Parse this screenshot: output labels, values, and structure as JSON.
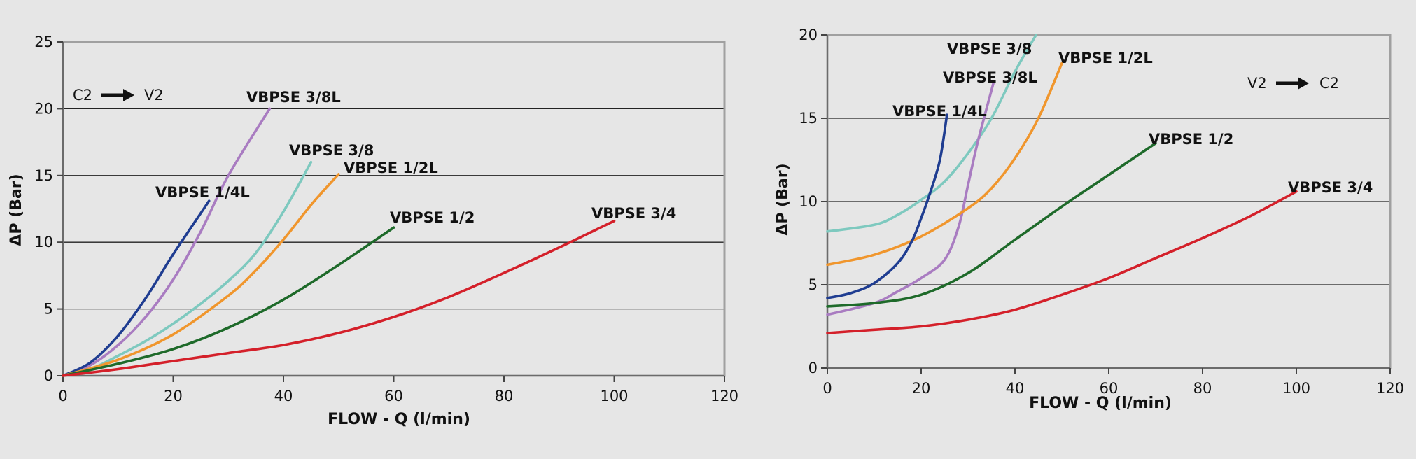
{
  "chart_data": [
    {
      "type": "line",
      "xlabel": "FLOW - Q (l/min)",
      "ylabel": "ΔP (Bar)",
      "xlim": [
        0,
        120
      ],
      "ylim": [
        0,
        25
      ],
      "xticks": [
        0,
        20,
        40,
        60,
        80,
        100,
        120
      ],
      "yticks": [
        0,
        5,
        10,
        15,
        20,
        25
      ],
      "grid": "horizontal",
      "flow_direction": {
        "from": "C2",
        "to": "V2"
      },
      "series": [
        {
          "name": "VBPSE 3/8L",
          "color": "#a97cc1",
          "points": [
            [
              0,
              0
            ],
            [
              5,
              0.8
            ],
            [
              10,
              2.3
            ],
            [
              15,
              4.4
            ],
            [
              20,
              7.2
            ],
            [
              25,
              10.8
            ],
            [
              30,
              15
            ],
            [
              37.5,
              20
            ]
          ]
        },
        {
          "name": "VBPSE 1/4L",
          "color": "#1f3d91",
          "points": [
            [
              0,
              0
            ],
            [
              5,
              1
            ],
            [
              10,
              3
            ],
            [
              15,
              5.8
            ],
            [
              20,
              9.1
            ],
            [
              26.5,
              13.1
            ]
          ]
        },
        {
          "name": "VBPSE 3/8",
          "color": "#7ec9bf",
          "points": [
            [
              0,
              0
            ],
            [
              5,
              0.5
            ],
            [
              10,
              1.5
            ],
            [
              15,
              2.6
            ],
            [
              20,
              3.9
            ],
            [
              25,
              5.4
            ],
            [
              30,
              7.1
            ],
            [
              35,
              9.2
            ],
            [
              40,
              12.3
            ],
            [
              45,
              16
            ]
          ]
        },
        {
          "name": "VBPSE 1/2L",
          "color": "#f0962d",
          "points": [
            [
              0,
              0
            ],
            [
              10,
              1.2
            ],
            [
              20,
              3.1
            ],
            [
              30,
              6
            ],
            [
              35,
              7.9
            ],
            [
              40,
              10.2
            ],
            [
              45,
              12.8
            ],
            [
              50,
              15.1
            ]
          ]
        },
        {
          "name": "VBPSE 1/2",
          "color": "#1e6a2a",
          "points": [
            [
              0,
              0
            ],
            [
              10,
              0.9
            ],
            [
              20,
              2
            ],
            [
              30,
              3.6
            ],
            [
              40,
              5.7
            ],
            [
              50,
              8.3
            ],
            [
              60,
              11.1
            ]
          ]
        },
        {
          "name": "VBPSE 3/4",
          "color": "#d4202a",
          "points": [
            [
              0,
              0
            ],
            [
              10,
              0.5
            ],
            [
              20,
              1.1
            ],
            [
              30,
              1.7
            ],
            [
              40,
              2.3
            ],
            [
              50,
              3.2
            ],
            [
              60,
              4.4
            ],
            [
              70,
              5.9
            ],
            [
              80,
              7.7
            ],
            [
              90,
              9.6
            ],
            [
              100,
              11.6
            ]
          ]
        }
      ]
    },
    {
      "type": "line",
      "xlabel": "FLOW - Q (l/min)",
      "ylabel": "ΔP (Bar)",
      "xlim": [
        0,
        120
      ],
      "ylim": [
        0,
        20
      ],
      "xticks": [
        0,
        20,
        40,
        60,
        80,
        100,
        120
      ],
      "yticks": [
        0,
        5,
        10,
        15,
        20
      ],
      "grid": "horizontal",
      "flow_direction": {
        "from": "V2",
        "to": "C2"
      },
      "series": [
        {
          "name": "VBPSE 3/8",
          "color": "#7ec9bf",
          "points": [
            [
              0,
              8.2
            ],
            [
              10,
              8.6
            ],
            [
              15,
              9.2
            ],
            [
              20,
              10.1
            ],
            [
              25,
              11.2
            ],
            [
              30,
              12.9
            ],
            [
              35,
              15
            ],
            [
              40,
              17.8
            ],
            [
              44.5,
              20
            ]
          ]
        },
        {
          "name": "VBPSE 3/8L",
          "color": "#a97cc1",
          "points": [
            [
              0,
              3.2
            ],
            [
              10,
              3.9
            ],
            [
              15,
              4.6
            ],
            [
              20,
              5.4
            ],
            [
              25,
              6.5
            ],
            [
              28,
              8.5
            ],
            [
              30,
              11
            ],
            [
              32,
              13.5
            ],
            [
              35.5,
              17.2
            ]
          ]
        },
        {
          "name": "VBPSE 1/2L",
          "color": "#f0962d",
          "points": [
            [
              0,
              6.2
            ],
            [
              10,
              6.8
            ],
            [
              20,
              7.9
            ],
            [
              30,
              9.6
            ],
            [
              35,
              10.8
            ],
            [
              40,
              12.6
            ],
            [
              45,
              15
            ],
            [
              50,
              18.3
            ]
          ]
        },
        {
          "name": "VBPSE 1/4L",
          "color": "#1f3d91",
          "points": [
            [
              0,
              4.2
            ],
            [
              5,
              4.5
            ],
            [
              10,
              5.1
            ],
            [
              15,
              6.3
            ],
            [
              18,
              7.6
            ],
            [
              20,
              9
            ],
            [
              22,
              10.6
            ],
            [
              24,
              12.5
            ],
            [
              25.5,
              15.2
            ]
          ]
        },
        {
          "name": "VBPSE 1/2",
          "color": "#1e6a2a",
          "points": [
            [
              0,
              3.7
            ],
            [
              10,
              3.9
            ],
            [
              20,
              4.4
            ],
            [
              30,
              5.7
            ],
            [
              40,
              7.7
            ],
            [
              50,
              9.7
            ],
            [
              60,
              11.6
            ],
            [
              70,
              13.5
            ]
          ]
        },
        {
          "name": "VBPSE 3/4",
          "color": "#d4202a",
          "points": [
            [
              0,
              2.1
            ],
            [
              10,
              2.3
            ],
            [
              20,
              2.5
            ],
            [
              30,
              2.9
            ],
            [
              40,
              3.5
            ],
            [
              50,
              4.4
            ],
            [
              60,
              5.4
            ],
            [
              70,
              6.6
            ],
            [
              80,
              7.8
            ],
            [
              90,
              9.1
            ],
            [
              100,
              10.6
            ]
          ]
        }
      ]
    }
  ]
}
